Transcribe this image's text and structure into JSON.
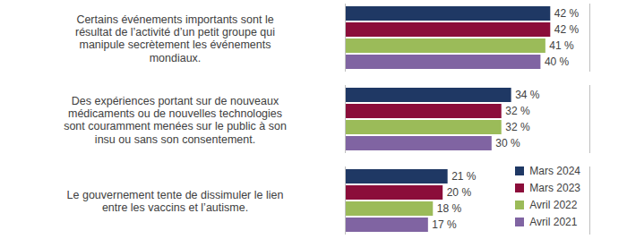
{
  "chart_data": {
    "type": "bar",
    "orientation": "horizontal",
    "categories": [
      "Certains événements importants sont le résultat de l’activité d’un petit groupe qui manipule secrètement les événements mondiaux.",
      "Des expériences portant sur de nouveaux médicaments ou de nouvelles technologies sont couramment menées sur le public à son insu ou sans son consentement.",
      "Le gouvernement tente de dissimuler le lien entre les vaccins et l’autisme."
    ],
    "series": [
      {
        "name": "Mars 2024",
        "color": "#1f3864",
        "values": [
          42,
          34,
          21
        ],
        "value_labels": [
          "42 %",
          "34 %",
          "21 %"
        ]
      },
      {
        "name": "Mars 2023",
        "color": "#8b0d3a",
        "values": [
          42,
          32,
          20
        ],
        "value_labels": [
          "42 %",
          "32 %",
          "20 %"
        ]
      },
      {
        "name": "Avril 2022",
        "color": "#9bbb59",
        "values": [
          41,
          32,
          18
        ],
        "value_labels": [
          "41 %",
          "32 %",
          "18 %"
        ]
      },
      {
        "name": "Avril 2021",
        "color": "#8064a2",
        "values": [
          40,
          30,
          17
        ],
        "value_labels": [
          "40 %",
          "30 %",
          "17 %"
        ]
      }
    ],
    "xlim": [
      0,
      50
    ],
    "tick_labels": false,
    "data_labels": true,
    "legend": "bottom-right"
  }
}
